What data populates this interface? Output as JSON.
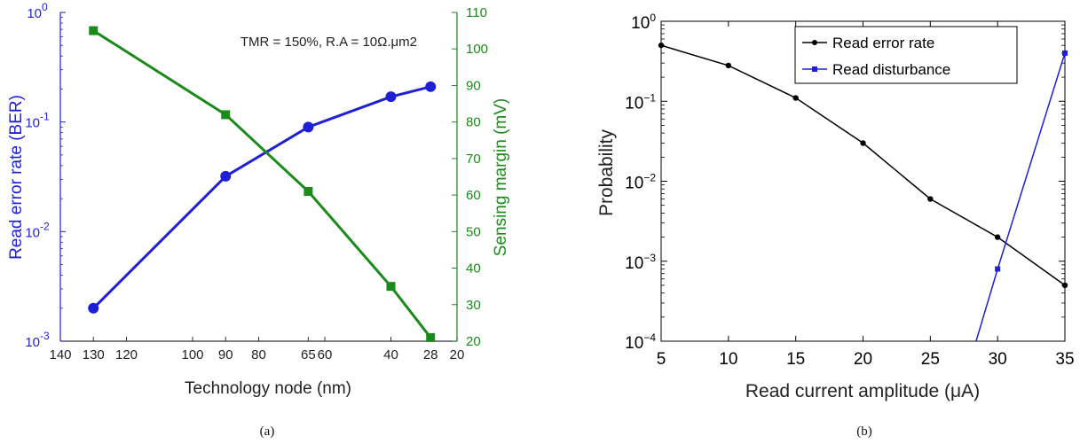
{
  "chart_data": [
    {
      "type": "line",
      "caption": "(a)",
      "annotation": "TMR = 150%, R.A = 10Ω.μm2",
      "xlabel": "Technology node (nm)",
      "ylabel_left": "Read error rate (BER)",
      "ylabel_right": "Sensing margin (mV)",
      "xlim": [
        140,
        20
      ],
      "x_ticks": [
        140,
        130,
        120,
        100,
        90,
        80,
        65,
        60,
        40,
        28,
        20
      ],
      "y_left_scale": "log",
      "y_left_lim": [
        0.001,
        1
      ],
      "y_left_ticks": [
        {
          "base": "10",
          "exp": "-3",
          "value": 0.001
        },
        {
          "base": "10",
          "exp": "-2",
          "value": 0.01
        },
        {
          "base": "10",
          "exp": "-1",
          "value": 0.1
        },
        {
          "base": "10",
          "exp": "0",
          "value": 1
        }
      ],
      "y_right_lim": [
        20,
        110
      ],
      "y_right_ticks": [
        20,
        30,
        40,
        50,
        60,
        70,
        80,
        90,
        100,
        110
      ],
      "colors": {
        "left": "#1f1fd6",
        "right": "#1a8a1a"
      },
      "series": [
        {
          "axis": "left",
          "marker": "circle",
          "x": [
            130,
            90,
            65,
            40,
            28
          ],
          "values": [
            0.002,
            0.032,
            0.09,
            0.17,
            0.21
          ]
        },
        {
          "axis": "right",
          "marker": "square",
          "x": [
            130,
            90,
            65,
            40,
            28
          ],
          "values": [
            105,
            82,
            61,
            35,
            21
          ]
        }
      ]
    },
    {
      "type": "line",
      "caption": "(b)",
      "xlabel": "Read current amplitude (μA)",
      "ylabel": "Probability",
      "xlim": [
        5,
        35
      ],
      "x_ticks": [
        5,
        10,
        15,
        20,
        25,
        30,
        35
      ],
      "y_scale": "log",
      "ylim": [
        0.0001,
        1
      ],
      "y_ticks": [
        {
          "base": "10",
          "exp": "−4",
          "value": 0.0001
        },
        {
          "base": "10",
          "exp": "−3",
          "value": 0.001
        },
        {
          "base": "10",
          "exp": "−2",
          "value": 0.01
        },
        {
          "base": "10",
          "exp": "−1",
          "value": 0.1
        },
        {
          "base": "10",
          "exp": "0",
          "value": 1
        }
      ],
      "legend_position": "top-right",
      "colors": {
        "error": "#000000",
        "disturb": "#1f1fd6"
      },
      "series": [
        {
          "name": "Read error rate",
          "marker": "circle",
          "x": [
            5,
            10,
            15,
            20,
            25,
            30,
            35
          ],
          "values": [
            0.5,
            0.28,
            0.11,
            0.03,
            0.006,
            0.002,
            0.0005
          ]
        },
        {
          "name": "Read disturbance",
          "marker": "square",
          "x": [
            28.4,
            30,
            35
          ],
          "values": [
            0.0001,
            0.0008,
            0.4
          ]
        }
      ]
    }
  ]
}
